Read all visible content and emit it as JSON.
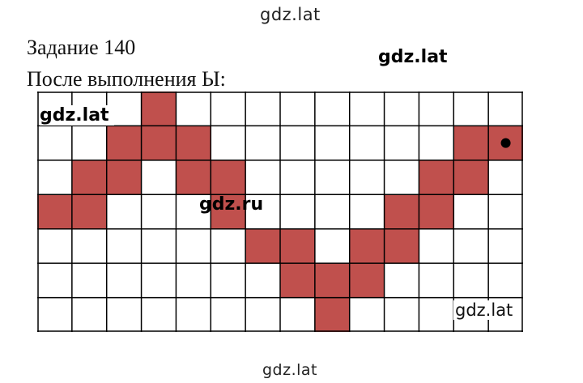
{
  "watermarks": {
    "top": "gdz.lat",
    "bottom": "gdz.lat",
    "right": "gdz.lat",
    "grid_left": "gdz.lat",
    "grid_center": "gdz.ru",
    "grid_bottom_right": "gdz.lat"
  },
  "task": {
    "title": "Задание 140",
    "subtitle": "После выполнения Ы:"
  },
  "grid": {
    "columns": 14,
    "rows": 7,
    "fill_color": "#c0504d",
    "line_color": "#000000",
    "marker_cell": [
      13,
      1
    ],
    "filled_cells": [
      [
        3,
        0
      ],
      [
        2,
        1
      ],
      [
        3,
        1
      ],
      [
        4,
        1
      ],
      [
        12,
        1
      ],
      [
        13,
        1
      ],
      [
        1,
        2
      ],
      [
        2,
        2
      ],
      [
        4,
        2
      ],
      [
        5,
        2
      ],
      [
        11,
        2
      ],
      [
        12,
        2
      ],
      [
        0,
        3
      ],
      [
        1,
        3
      ],
      [
        5,
        3
      ],
      [
        10,
        3
      ],
      [
        11,
        3
      ],
      [
        6,
        4
      ],
      [
        7,
        4
      ],
      [
        9,
        4
      ],
      [
        10,
        4
      ],
      [
        7,
        5
      ],
      [
        8,
        5
      ],
      [
        9,
        5
      ],
      [
        8,
        6
      ]
    ]
  }
}
